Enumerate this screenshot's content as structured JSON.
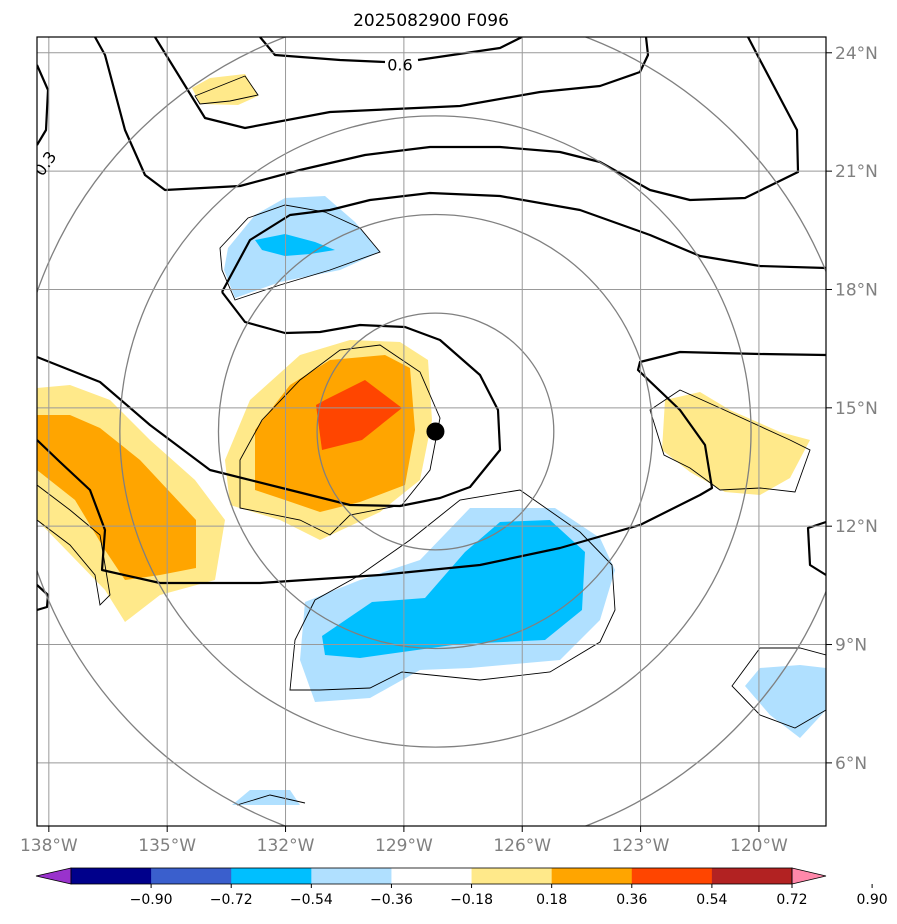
{
  "chart_data": {
    "type": "contour_map",
    "title": "2025082900 F096",
    "x_range": [
      -138.3,
      -118.3
    ],
    "y_range": [
      4.4,
      24.4
    ],
    "x_ticks": [
      -138,
      -135,
      -132,
      -129,
      -126,
      -123,
      -120
    ],
    "x_tick_labels": [
      "138°W",
      "135°W",
      "132°W",
      "129°W",
      "126°W",
      "123°W",
      "120°W"
    ],
    "y_ticks": [
      24,
      21,
      18,
      15,
      12,
      9,
      6
    ],
    "y_tick_labels": [
      "24°N",
      "21°N",
      "18°N",
      "15°N",
      "12°N",
      "9°N",
      "6°N"
    ],
    "storm_center": {
      "lon": -128.2,
      "lat": 14.4
    },
    "range_rings_deg": [
      3,
      5.5,
      8,
      10.7
    ],
    "contour_labels": [
      {
        "text": "0.6",
        "lon": -129.1,
        "lat": 23.7
      },
      {
        "text": "0.3",
        "lon": -138.1,
        "lat": 21.2
      }
    ],
    "colorbar": {
      "levels": [
        "−0.90",
        "−0.72",
        "−0.54",
        "−0.36",
        "−0.18",
        "0.18",
        "0.36",
        "0.54",
        "0.72",
        "0.90"
      ],
      "colors": [
        "#9932cc",
        "#00008b",
        "#3a5fcd",
        "#00bfff",
        "#b0e0ff",
        "#ffffff",
        "#ffe98a",
        "#ffa500",
        "#ff4500",
        "#b22222",
        "#ff88aa"
      ]
    }
  }
}
